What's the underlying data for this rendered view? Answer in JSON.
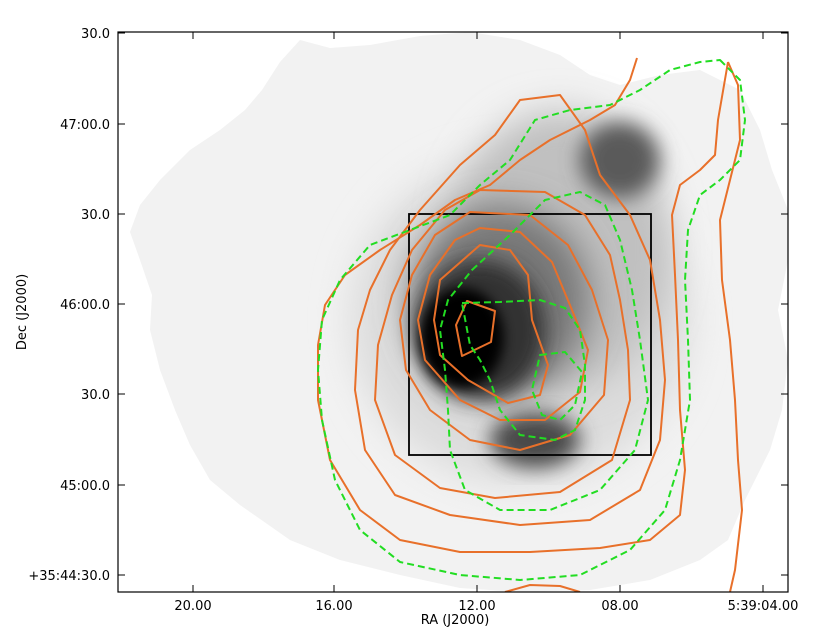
{
  "chart_data": {
    "type": "contour",
    "title": "",
    "xlabel": "RA (J2000)",
    "ylabel": "Dec (J2000)",
    "x_tick_labels": [
      "20.00",
      "16.00",
      "12.00",
      "08.00",
      "5:39:04.00"
    ],
    "y_tick_labels": [
      "30.0",
      "47:00.0",
      "30.0",
      "46:00.0",
      "30.0",
      "45:00.0",
      "+35:44:30.0"
    ],
    "colors": {
      "background_image": "grayscale",
      "solid_contours": "#e8702a",
      "dashed_contours": "#22dd22",
      "box": "#000000"
    },
    "series": [
      {
        "style": "solid orange contours",
        "levels": 7
      },
      {
        "style": "dashed green contours",
        "levels": 3
      }
    ],
    "annotations": [
      "black rectangular box around the central source"
    ]
  }
}
